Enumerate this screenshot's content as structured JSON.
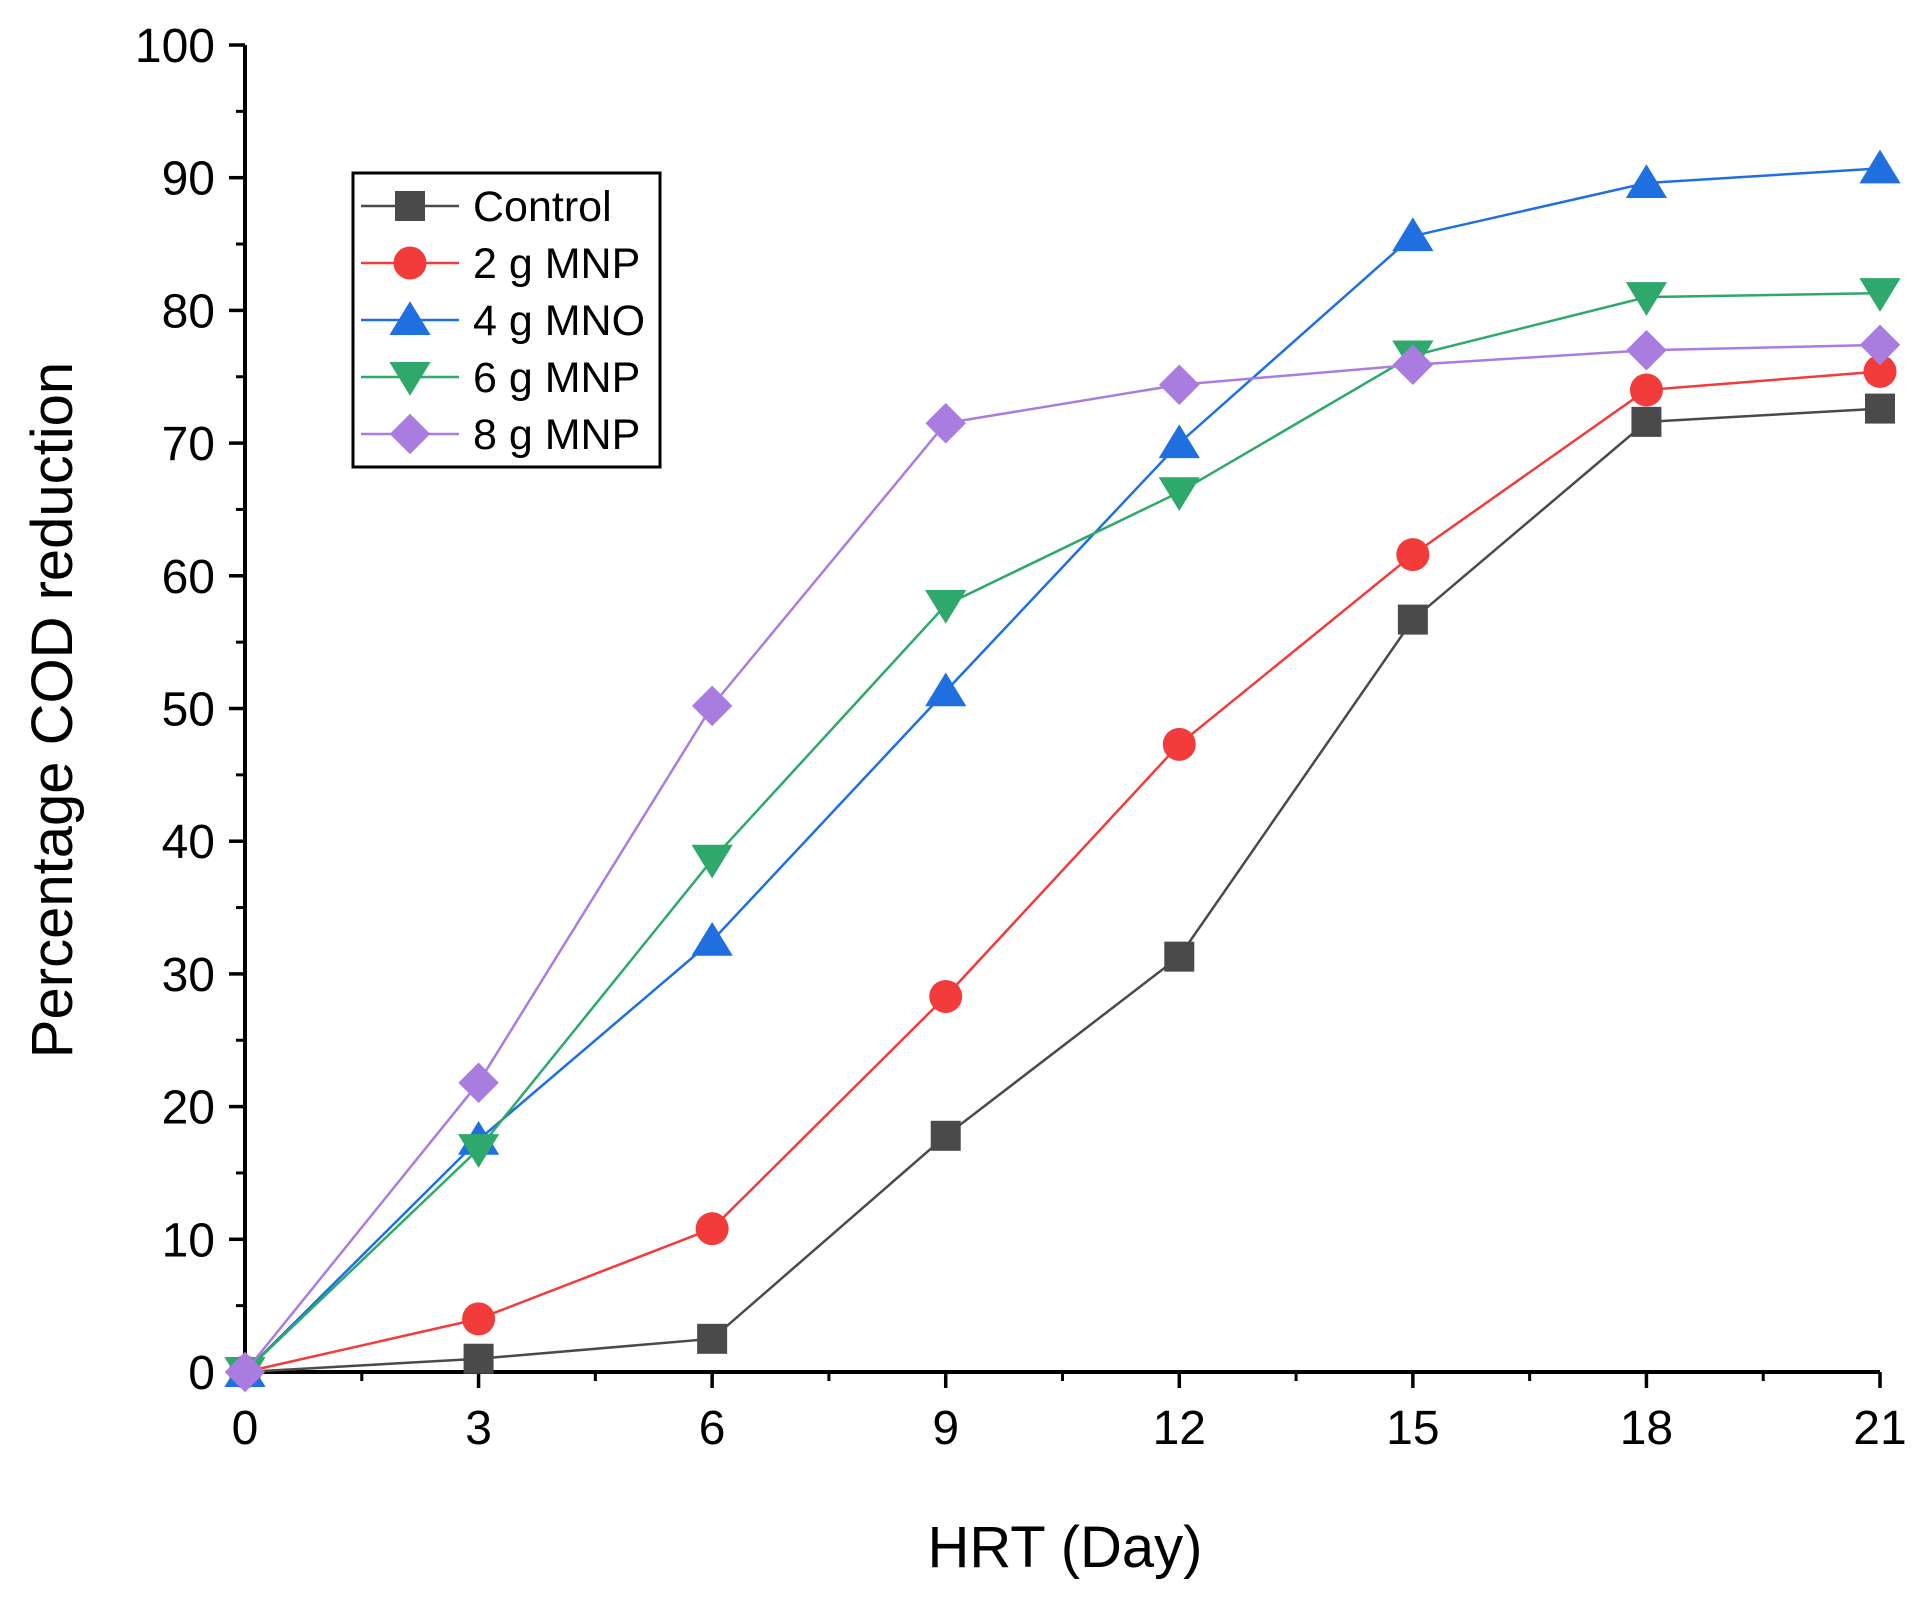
{
  "chart_data": {
    "type": "line",
    "title": "",
    "xlabel": "HRT (Day)",
    "ylabel": "Percentage COD reduction",
    "x": [
      0,
      3,
      6,
      9,
      12,
      15,
      18,
      21
    ],
    "xlim": [
      0,
      21
    ],
    "ylim": [
      0,
      100
    ],
    "xticks": [
      0,
      3,
      6,
      9,
      12,
      15,
      18,
      21
    ],
    "yticks": [
      0,
      10,
      20,
      30,
      40,
      50,
      60,
      70,
      80,
      90,
      100
    ],
    "grid": false,
    "legend_position": "upper-left",
    "series": [
      {
        "name": "Control",
        "color": "#4a4a4a",
        "marker": "square",
        "values": [
          0,
          1,
          2.5,
          17.8,
          31.3,
          56.7,
          71.6,
          72.6
        ]
      },
      {
        "name": "2 g MNP",
        "color": "#f23b3b",
        "marker": "circle",
        "values": [
          0,
          4,
          10.8,
          28.3,
          47.3,
          61.6,
          74,
          75.4
        ]
      },
      {
        "name": "4 g MNO",
        "color": "#1f6fe0",
        "marker": "triangle-up",
        "values": [
          0,
          17.5,
          32.5,
          51.3,
          70,
          85.6,
          89.6,
          90.7
        ]
      },
      {
        "name": "6 g MNP",
        "color": "#2ea86b",
        "marker": "triangle-down",
        "values": [
          0,
          16.8,
          38.6,
          57.8,
          66.3,
          76.6,
          81,
          81.3
        ]
      },
      {
        "name": "8 g MNP",
        "color": "#a97de0",
        "marker": "diamond",
        "values": [
          0,
          21.8,
          50.2,
          71.5,
          74.4,
          75.9,
          77,
          77.4
        ]
      }
    ]
  }
}
